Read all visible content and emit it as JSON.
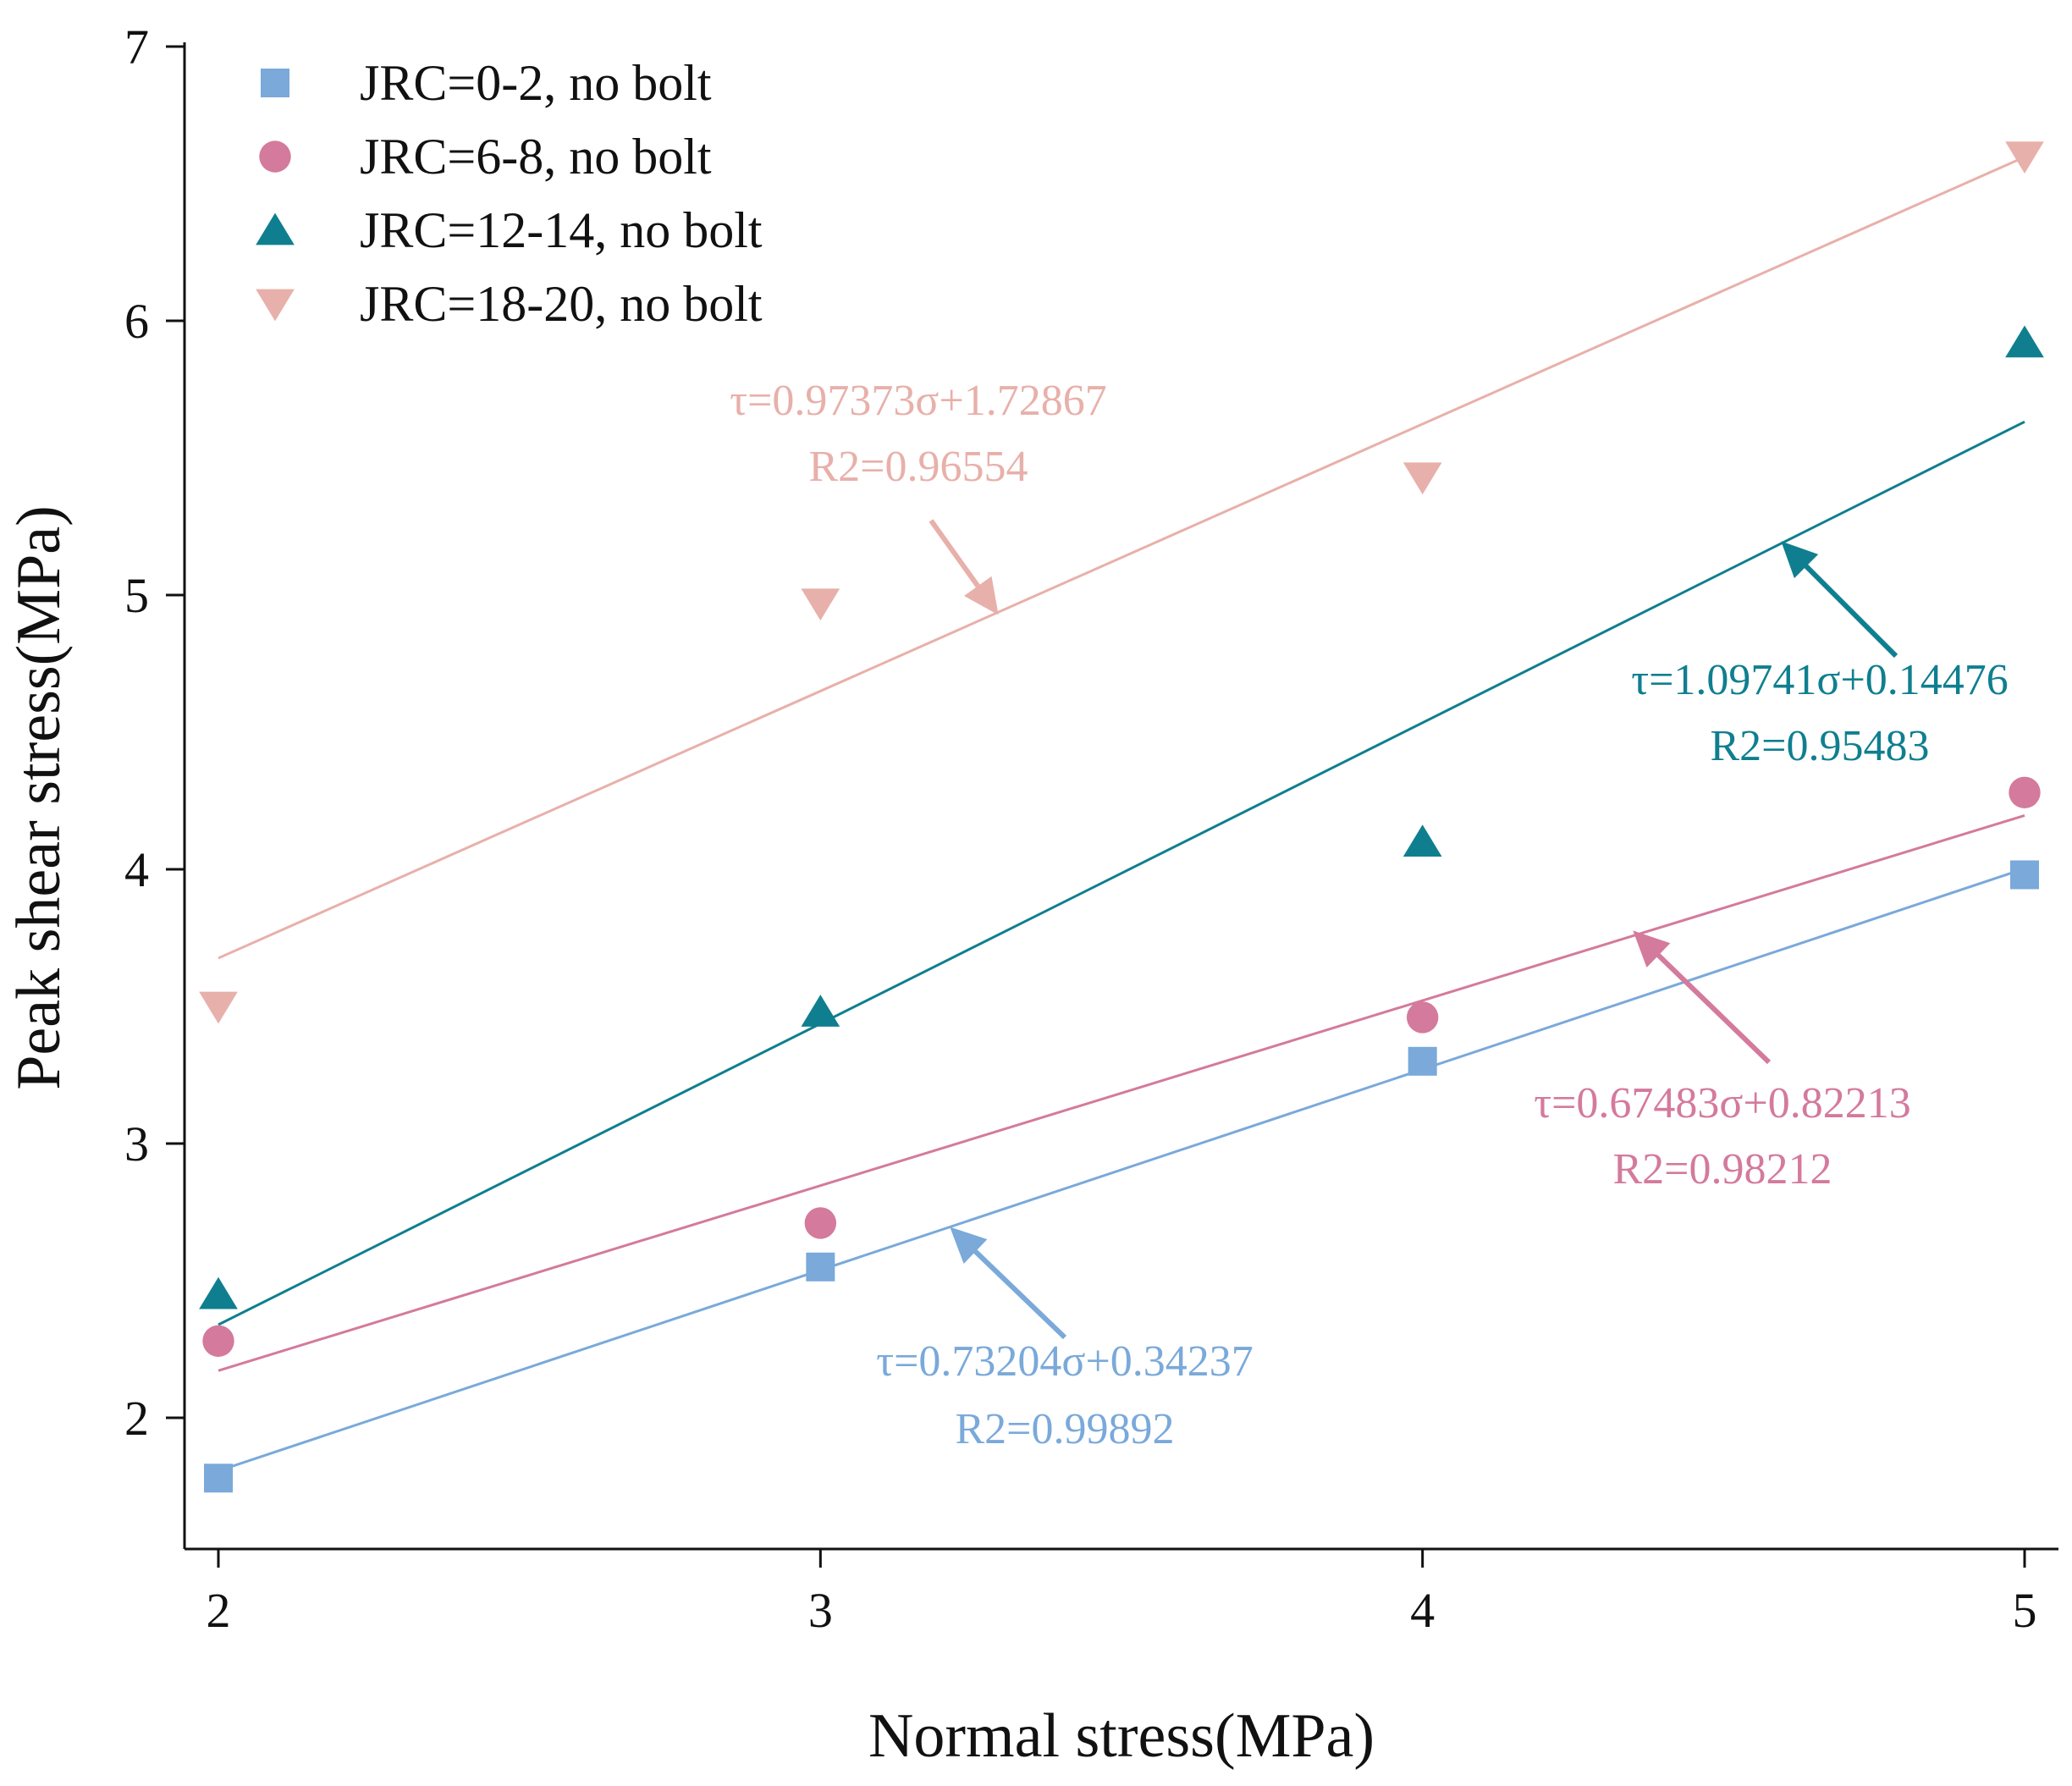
{
  "chart_data": {
    "type": "scatter",
    "title": "",
    "xlabel": "Normal stress(MPa)",
    "ylabel": "Peak shear stress(MPa)",
    "xlim": [
      1.95,
      5.05
    ],
    "ylim": [
      1.5,
      7.0
    ],
    "xticks": [
      "2",
      "3",
      "4",
      "5"
    ],
    "yticks": [
      "2",
      "3",
      "4",
      "5",
      "6",
      "7"
    ],
    "legend_position": "top-left",
    "series": [
      {
        "name": "JRC=0-2, no bolt",
        "marker": "square",
        "color": "#7AA9DA",
        "x": [
          2,
          3,
          4,
          5
        ],
        "y": [
          1.78,
          2.55,
          3.3,
          3.98
        ],
        "fit": {
          "slope": 0.73204,
          "intercept": 0.34237
        },
        "equation": "τ=0.73204σ+0.34237",
        "r2": "R2=0.99892"
      },
      {
        "name": "JRC=6-8, no bolt",
        "marker": "circle",
        "color": "#D47A9C",
        "x": [
          2,
          3,
          4,
          5
        ],
        "y": [
          2.28,
          2.71,
          3.46,
          4.28
        ],
        "fit": {
          "slope": 0.67483,
          "intercept": 0.82213
        },
        "equation": "τ=0.67483σ+0.82213",
        "r2": "R2=0.98212"
      },
      {
        "name": "JRC=12-14, no bolt",
        "marker": "triangle-up",
        "color": "#0F7F8F",
        "x": [
          2,
          3,
          4,
          5
        ],
        "y": [
          2.45,
          3.48,
          4.1,
          5.92
        ],
        "fit": {
          "slope": 1.09741,
          "intercept": 0.14476
        },
        "equation": "τ=1.09741σ+0.14476",
        "r2": "R2=0.95483"
      },
      {
        "name": "JRC=18-20, no bolt",
        "marker": "triangle-down",
        "color": "#E8B0AA",
        "x": [
          2,
          3,
          4,
          5
        ],
        "y": [
          3.5,
          4.97,
          5.43,
          6.6
        ],
        "fit": {
          "slope": 0.97373,
          "intercept": 1.72867
        },
        "equation": "τ=0.97373σ+1.72867",
        "r2": "R2=0.96554"
      }
    ]
  }
}
